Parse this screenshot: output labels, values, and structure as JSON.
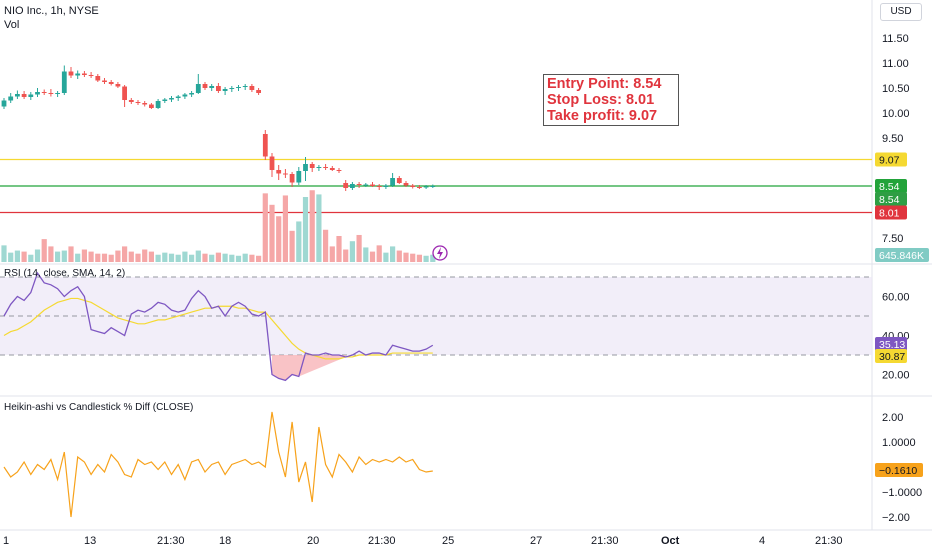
{
  "header": {
    "title": "NIO Inc., 1h, NYSE",
    "vol_label": "Vol"
  },
  "currency_button": "USD",
  "annotation": {
    "entry": "Entry Point: 8.54",
    "stop": "Stop Loss: 8.01",
    "take": "Take profit: 9.07"
  },
  "price_badges": {
    "take_profit": "9.07",
    "last": "8.54",
    "last2": "8.54",
    "stop_loss": "8.01",
    "volume": "645.846K"
  },
  "rsi": {
    "title": "RSI (14, close, SMA, 14, 2)",
    "value": "35.13",
    "sma_value": "30.87"
  },
  "hk": {
    "title": "Heikin-ashi vs Candlestick % Diff (CLOSE)",
    "value": "−0.1610"
  },
  "colors": {
    "up": "#26a69a",
    "down": "#ef5350",
    "take": "#f5d932",
    "entry": "#22a33a",
    "stop": "#e0343d",
    "rsi_line": "#7e57c2",
    "rsi_sma": "#f5d932",
    "hk_line": "#f7a21b"
  },
  "chart_data": [
    {
      "type": "candlestick",
      "title": "NIO Inc., 1h, NYSE",
      "y_ticks": [
        "11.50",
        "11.00",
        "10.50",
        "10.00",
        "9.50",
        "7.50"
      ],
      "x_ticks": [
        "1",
        "13",
        "21:30",
        "18",
        "20",
        "21:30",
        "25",
        "27",
        "21:30",
        "Oct",
        "4",
        "21:30"
      ],
      "levels": {
        "take_profit": 9.07,
        "entry": 8.54,
        "stop_loss": 8.01
      },
      "candles": [
        [
          10.13,
          10.3,
          10.08,
          10.25
        ],
        [
          10.25,
          10.4,
          10.2,
          10.33
        ],
        [
          10.33,
          10.45,
          10.28,
          10.38
        ],
        [
          10.38,
          10.44,
          10.28,
          10.32
        ],
        [
          10.32,
          10.42,
          10.26,
          10.37
        ],
        [
          10.37,
          10.5,
          10.32,
          10.42
        ],
        [
          10.42,
          10.47,
          10.36,
          10.4
        ],
        [
          10.4,
          10.48,
          10.33,
          10.38
        ],
        [
          10.38,
          10.44,
          10.32,
          10.4
        ],
        [
          10.4,
          10.95,
          10.36,
          10.83
        ],
        [
          10.83,
          10.92,
          10.7,
          10.75
        ],
        [
          10.75,
          10.85,
          10.68,
          10.79
        ],
        [
          10.79,
          10.84,
          10.72,
          10.76
        ],
        [
          10.76,
          10.82,
          10.7,
          10.74
        ],
        [
          10.74,
          10.78,
          10.62,
          10.65
        ],
        [
          10.65,
          10.7,
          10.58,
          10.62
        ],
        [
          10.62,
          10.66,
          10.55,
          10.58
        ],
        [
          10.58,
          10.62,
          10.5,
          10.53
        ],
        [
          10.53,
          10.56,
          10.12,
          10.26
        ],
        [
          10.26,
          10.3,
          10.18,
          10.22
        ],
        [
          10.22,
          10.26,
          10.16,
          10.2
        ],
        [
          10.2,
          10.24,
          10.13,
          10.17
        ],
        [
          10.17,
          10.2,
          10.08,
          10.1
        ],
        [
          10.1,
          10.28,
          10.08,
          10.24
        ],
        [
          10.24,
          10.3,
          10.2,
          10.27
        ],
        [
          10.27,
          10.34,
          10.22,
          10.3
        ],
        [
          10.3,
          10.36,
          10.24,
          10.33
        ],
        [
          10.33,
          10.4,
          10.28,
          10.37
        ],
        [
          10.37,
          10.44,
          10.32,
          10.4
        ],
        [
          10.4,
          10.78,
          10.38,
          10.58
        ],
        [
          10.58,
          10.62,
          10.46,
          10.5
        ],
        [
          10.5,
          10.58,
          10.44,
          10.54
        ],
        [
          10.54,
          10.6,
          10.4,
          10.44
        ],
        [
          10.44,
          10.52,
          10.36,
          10.48
        ],
        [
          10.48,
          10.54,
          10.42,
          10.5
        ],
        [
          10.5,
          10.56,
          10.44,
          10.52
        ],
        [
          10.52,
          10.58,
          10.46,
          10.54
        ],
        [
          10.54,
          10.58,
          10.42,
          10.46
        ],
        [
          10.46,
          10.5,
          10.36,
          10.4
        ],
        [
          9.58,
          9.66,
          9.06,
          9.13
        ],
        [
          9.13,
          9.2,
          8.72,
          8.86
        ],
        [
          8.86,
          8.96,
          8.66,
          8.79
        ],
        [
          8.79,
          8.88,
          8.7,
          8.78
        ],
        [
          8.78,
          8.82,
          8.52,
          8.61
        ],
        [
          8.61,
          8.92,
          8.56,
          8.84
        ],
        [
          8.84,
          9.12,
          8.64,
          8.98
        ],
        [
          8.98,
          9.02,
          8.82,
          8.9
        ],
        [
          8.9,
          8.96,
          8.84,
          8.92
        ],
        [
          8.92,
          8.98,
          8.86,
          8.9
        ],
        [
          8.9,
          8.94,
          8.84,
          8.86
        ],
        [
          8.86,
          8.9,
          8.8,
          8.84
        ],
        [
          8.6,
          8.66,
          8.44,
          8.5
        ],
        [
          8.5,
          8.62,
          8.46,
          8.58
        ],
        [
          8.58,
          8.62,
          8.5,
          8.56
        ],
        [
          8.56,
          8.6,
          8.52,
          8.57
        ],
        [
          8.57,
          8.62,
          8.52,
          8.54
        ],
        [
          8.54,
          8.58,
          8.46,
          8.52
        ],
        [
          8.52,
          8.58,
          8.48,
          8.55
        ],
        [
          8.55,
          8.8,
          8.52,
          8.7
        ],
        [
          8.7,
          8.74,
          8.58,
          8.6
        ],
        [
          8.6,
          8.64,
          8.52,
          8.55
        ],
        [
          8.55,
          8.58,
          8.49,
          8.52
        ],
        [
          8.52,
          8.56,
          8.48,
          8.51
        ],
        [
          8.51,
          8.56,
          8.48,
          8.53
        ],
        [
          8.53,
          8.57,
          8.5,
          8.54
        ]
      ],
      "volume": [
        0.32,
        0.18,
        0.22,
        0.2,
        0.14,
        0.24,
        0.44,
        0.3,
        0.2,
        0.22,
        0.3,
        0.16,
        0.24,
        0.2,
        0.16,
        0.16,
        0.14,
        0.22,
        0.3,
        0.2,
        0.16,
        0.24,
        0.2,
        0.14,
        0.18,
        0.16,
        0.14,
        0.2,
        0.14,
        0.22,
        0.16,
        0.14,
        0.18,
        0.16,
        0.14,
        0.12,
        0.16,
        0.14,
        0.12,
        1.32,
        1.1,
        0.88,
        1.28,
        0.6,
        0.78,
        1.25,
        1.38,
        1.3,
        0.62,
        0.3,
        0.5,
        0.24,
        0.4,
        0.52,
        0.28,
        0.2,
        0.32,
        0.18,
        0.3,
        0.22,
        0.18,
        0.16,
        0.14,
        0.12,
        0.14
      ]
    },
    {
      "type": "line",
      "title": "RSI (14, close, SMA, 14, 2)",
      "y_ticks": [
        "60.00",
        "40.00",
        "20.00"
      ],
      "bands": [
        70,
        50,
        30
      ],
      "series": [
        {
          "name": "RSI",
          "values": [
            50,
            56,
            60,
            58,
            62,
            72,
            67,
            66,
            64,
            60,
            63,
            65,
            60,
            43,
            42,
            41,
            44,
            42,
            40,
            51,
            53,
            52,
            54,
            57,
            56,
            53,
            52,
            53,
            59,
            63,
            60,
            54,
            55,
            50,
            55,
            57,
            55,
            51,
            50,
            52,
            20,
            18,
            17,
            20,
            19,
            31,
            30,
            30,
            31,
            30,
            30,
            29,
            30,
            32,
            30,
            31,
            31,
            30,
            35,
            34,
            33,
            32,
            32,
            33,
            35
          ]
        },
        {
          "name": "SMA",
          "values": [
            40,
            42,
            43,
            45,
            47,
            50,
            53,
            55,
            57,
            58,
            59,
            59,
            58,
            57,
            55,
            53,
            51,
            49,
            48,
            47,
            46,
            46,
            47,
            48,
            48,
            49,
            50,
            51,
            52,
            53,
            54,
            54,
            55,
            55,
            55,
            54,
            54,
            53,
            52,
            52,
            48,
            44,
            40,
            36,
            33,
            31,
            30,
            29,
            28,
            28,
            28,
            29,
            29,
            30,
            30,
            30,
            30,
            30,
            31,
            31,
            31,
            31,
            31,
            31,
            31
          ]
        }
      ]
    },
    {
      "type": "line",
      "title": "Heikin-ashi vs Candlestick % Diff (CLOSE)",
      "y_ticks": [
        "2.00",
        "1.0000",
        "−1.0000",
        "−2.00"
      ],
      "series": [
        {
          "name": "HA diff",
          "values": [
            0,
            -0.4,
            -0.2,
            0.2,
            -0.3,
            0.1,
            -0.1,
            0.3,
            -0.5,
            0.6,
            -2,
            0.4,
            0.2,
            -0.3,
            0.1,
            -0.2,
            0.5,
            0.2,
            -0.3,
            -0.4,
            0.3,
            0.1,
            0.2,
            -0.1,
            0.2,
            -0.3,
            0.1,
            -0.5,
            0.2,
            0.3,
            -0.2,
            0.1,
            0.2,
            -0.3,
            0.1,
            0.2,
            0.3,
            0.1,
            0.2,
            0,
            2.2,
            0.6,
            -0.4,
            1.8,
            -0.6,
            0.2,
            -1.4,
            1.6,
            0.1,
            -0.4,
            0.5,
            0.2,
            -0.2,
            0.4,
            0.1,
            0.3,
            0.2,
            0.3,
            0.2,
            0.4,
            0.2,
            0.3,
            -0.1,
            -0.2,
            -0.16
          ]
        }
      ]
    }
  ]
}
